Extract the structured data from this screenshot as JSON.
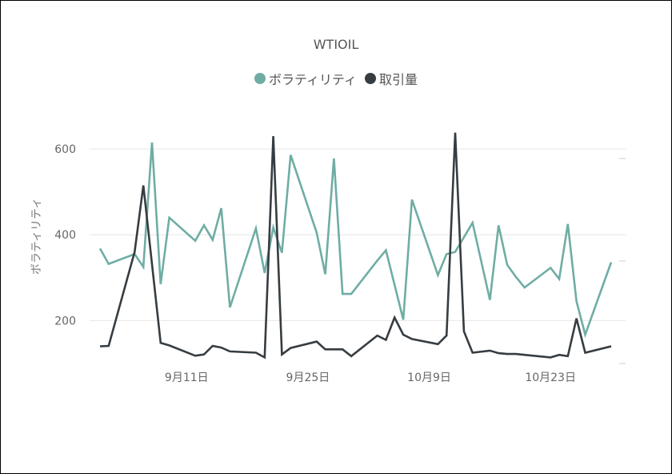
{
  "chart_data": {
    "type": "line",
    "title": "WTIOIL",
    "ylabel": "ボラティリティ",
    "xlabel": "",
    "ylim": [
      100,
      650
    ],
    "y_ticks": [
      200,
      400,
      600
    ],
    "x_ticks": [
      "9月11日",
      "9月25日",
      "10月9日",
      "10月23日"
    ],
    "legend_position": "top-center",
    "grid": true,
    "series": [
      {
        "name": "ボラティリティ",
        "color": "#6fada4",
        "points": [
          [
            0,
            368
          ],
          [
            1,
            332
          ],
          [
            4,
            355
          ],
          [
            5,
            325
          ],
          [
            6,
            615
          ],
          [
            7,
            285
          ],
          [
            8,
            440
          ],
          [
            11,
            386
          ],
          [
            12,
            422
          ],
          [
            13,
            388
          ],
          [
            14,
            462
          ],
          [
            15,
            231
          ],
          [
            18,
            415
          ],
          [
            19,
            311
          ],
          [
            20,
            417
          ],
          [
            21,
            358
          ],
          [
            22,
            586
          ],
          [
            25,
            405
          ],
          [
            26,
            308
          ],
          [
            27,
            578
          ],
          [
            28,
            262
          ],
          [
            29,
            262
          ],
          [
            32,
            340
          ],
          [
            33,
            364
          ],
          [
            35,
            202
          ],
          [
            36,
            482
          ],
          [
            39,
            306
          ],
          [
            40,
            355
          ],
          [
            41,
            360
          ],
          [
            43,
            428
          ],
          [
            45,
            248
          ],
          [
            46,
            422
          ],
          [
            47,
            330
          ],
          [
            48,
            302
          ],
          [
            49,
            277
          ],
          [
            52,
            323
          ],
          [
            53,
            297
          ],
          [
            54,
            425
          ],
          [
            55,
            245
          ],
          [
            56,
            167
          ],
          [
            59,
            336
          ]
        ]
      },
      {
        "name": "取引量",
        "color": "#363d42",
        "points": [
          [
            0,
            140
          ],
          [
            1,
            141
          ],
          [
            4,
            360
          ],
          [
            5,
            515
          ],
          [
            7,
            148
          ],
          [
            8,
            142
          ],
          [
            11,
            118
          ],
          [
            12,
            121
          ],
          [
            13,
            141
          ],
          [
            14,
            137
          ],
          [
            15,
            128
          ],
          [
            18,
            125
          ],
          [
            19,
            114
          ],
          [
            20,
            630
          ],
          [
            21,
            121
          ],
          [
            22,
            136
          ],
          [
            25,
            151
          ],
          [
            26,
            133
          ],
          [
            28,
            133
          ],
          [
            29,
            117
          ],
          [
            32,
            165
          ],
          [
            33,
            155
          ],
          [
            34,
            207
          ],
          [
            35,
            167
          ],
          [
            36,
            157
          ],
          [
            39,
            145
          ],
          [
            40,
            165
          ],
          [
            41,
            638
          ],
          [
            42,
            175
          ],
          [
            43,
            125
          ],
          [
            45,
            130
          ],
          [
            46,
            124
          ],
          [
            47,
            122
          ],
          [
            48,
            122
          ],
          [
            49,
            120
          ],
          [
            52,
            114
          ],
          [
            53,
            120
          ],
          [
            54,
            117
          ],
          [
            55,
            205
          ],
          [
            56,
            125
          ],
          [
            59,
            140
          ]
        ]
      }
    ],
    "x_tick_positions": [
      10,
      24,
      38,
      52
    ]
  }
}
